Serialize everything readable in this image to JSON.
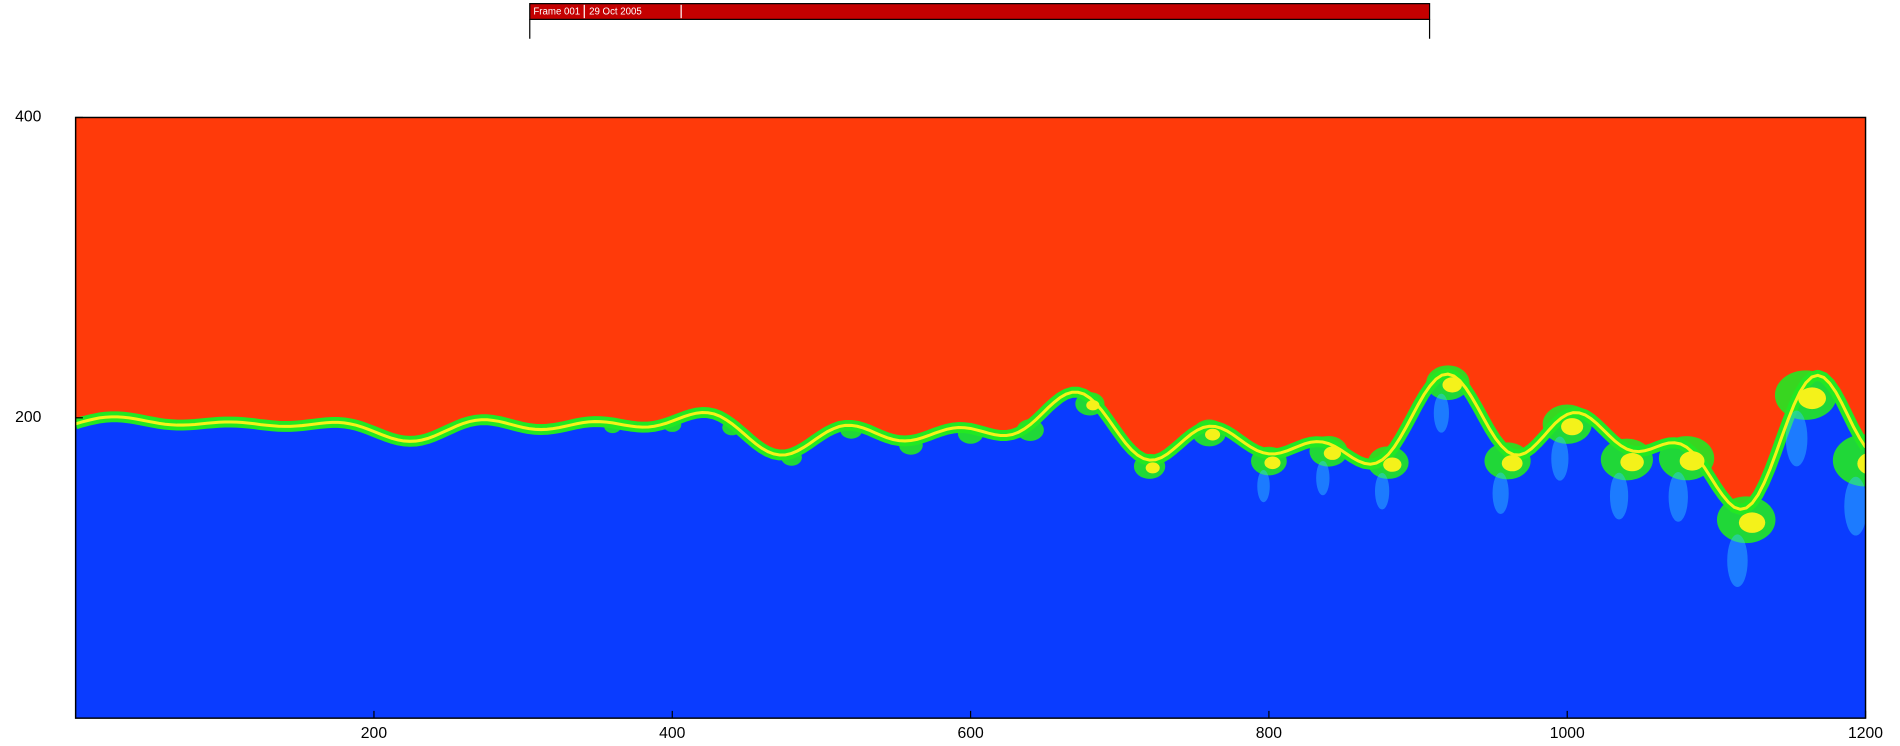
{
  "header": {
    "frame": "Frame 001",
    "date": "29 Oct 2005"
  },
  "chart_data": {
    "type": "contour",
    "xlim": [
      0,
      1200
    ],
    "ylim": [
      0,
      400
    ],
    "xticks": [
      200,
      400,
      600,
      800,
      1000,
      1200
    ],
    "yticks": [
      200,
      400
    ],
    "upper_color": "#ff3a0a",
    "lower_color": "#0a3cff",
    "interface_colors": [
      "#22e822",
      "#f4f21a",
      "#33c8ff"
    ]
  }
}
